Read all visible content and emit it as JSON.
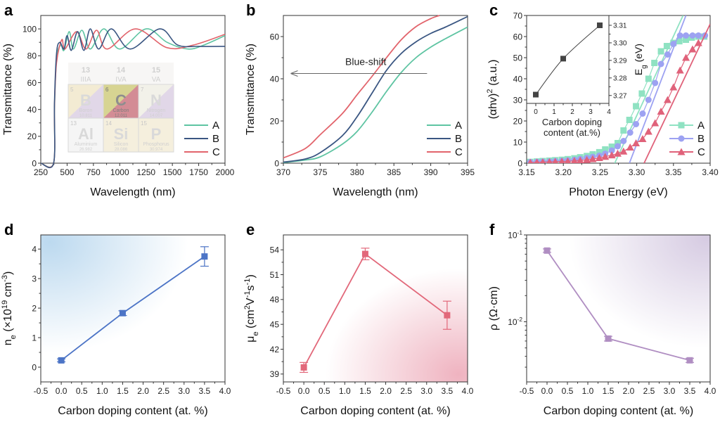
{
  "panel_labels": [
    "a",
    "b",
    "c",
    "d",
    "e",
    "f"
  ],
  "colors": {
    "A": "#5ec4a2",
    "B": "#3a5682",
    "C": "#e2646c",
    "c_A": "#8fe2c2",
    "c_B": "#9da2f2",
    "c_C": "#e0627a",
    "d": "#4c74c6",
    "e": "#e2687a",
    "f": "#b08ec2",
    "arrow": "#666666"
  },
  "periodic_table_inset": {
    "headers": [
      {
        "num": "13",
        "group": "IIIA"
      },
      {
        "num": "14",
        "group": "IVA"
      },
      {
        "num": "15",
        "group": "VA"
      }
    ],
    "cells": [
      {
        "z": "5",
        "sym": "B",
        "name": "Boron",
        "mass": "10.811"
      },
      {
        "z": "6",
        "sym": "C",
        "name": "Carbon",
        "mass": "12.011"
      },
      {
        "z": "7",
        "sym": "N",
        "name": "Nitrogen",
        "mass": "14.007"
      },
      {
        "z": "13",
        "sym": "Al",
        "name": "Aluminium",
        "mass": "26.982"
      },
      {
        "z": "14",
        "sym": "Si",
        "name": "Silicon",
        "mass": "28.086"
      },
      {
        "z": "15",
        "sym": "P",
        "name": "Phosphorus",
        "mass": "30.974"
      }
    ]
  },
  "chart_data": [
    {
      "panel": "a",
      "type": "line",
      "xlabel": "Wavelength (nm)",
      "ylabel": "Transmittance (%)",
      "xlim": [
        250,
        2000
      ],
      "ylim": [
        0,
        110
      ],
      "xticks": [
        250,
        500,
        750,
        1000,
        1250,
        1500,
        1750,
        2000
      ],
      "yticks": [
        0,
        20,
        40,
        60,
        80,
        100
      ],
      "legend": "bottom-right",
      "series": [
        {
          "name": "A",
          "points": [
            [
              250,
              0
            ],
            [
              372,
              0
            ],
            [
              380,
              40
            ],
            [
              400,
              78
            ],
            [
              440,
              88
            ],
            [
              470,
              84
            ],
            [
              520,
              98
            ],
            [
              560,
              85
            ],
            [
              640,
              99
            ],
            [
              720,
              85
            ],
            [
              850,
              100
            ],
            [
              1000,
              85
            ],
            [
              1250,
              100
            ],
            [
              1450,
              90
            ],
            [
              1650,
              85
            ],
            [
              1800,
              88
            ],
            [
              2000,
              95
            ]
          ]
        },
        {
          "name": "B",
          "points": [
            [
              250,
              0
            ],
            [
              372,
              0
            ],
            [
              380,
              45
            ],
            [
              400,
              82
            ],
            [
              430,
              90
            ],
            [
              470,
              85
            ],
            [
              500,
              95
            ],
            [
              540,
              84
            ],
            [
              600,
              98
            ],
            [
              660,
              84
            ],
            [
              720,
              100
            ],
            [
              800,
              85
            ],
            [
              920,
              100
            ],
            [
              1100,
              85
            ],
            [
              1380,
              100
            ],
            [
              1550,
              88
            ],
            [
              1750,
              87
            ],
            [
              2000,
              87
            ]
          ]
        },
        {
          "name": "C",
          "points": [
            [
              250,
              0
            ],
            [
              372,
              0
            ],
            [
              380,
              42
            ],
            [
              400,
              75
            ],
            [
              450,
              92
            ],
            [
              480,
              85
            ],
            [
              590,
              98
            ],
            [
              680,
              85
            ],
            [
              780,
              99
            ],
            [
              880,
              85
            ],
            [
              1150,
              100
            ],
            [
              1450,
              86
            ],
            [
              1700,
              88
            ],
            [
              2000,
              96
            ]
          ]
        }
      ]
    },
    {
      "panel": "b",
      "type": "line",
      "xlabel": "Wavelength (nm)",
      "ylabel": "Transmittance (%)",
      "xlim": [
        370,
        395
      ],
      "ylim": [
        0,
        70
      ],
      "xticks": [
        370,
        375,
        380,
        385,
        390,
        395
      ],
      "yticks": [
        0,
        20,
        40,
        60
      ],
      "legend": "bottom-right",
      "annotation": {
        "text": "Blue-shift",
        "from": [
          389.5,
          42.5
        ],
        "to": [
          371,
          42.5
        ]
      },
      "series": [
        {
          "name": "A",
          "points": [
            [
              370,
              0.3
            ],
            [
              373,
              1.5
            ],
            [
              375,
              3
            ],
            [
              378,
              9
            ],
            [
              380,
              15
            ],
            [
              382,
              24
            ],
            [
              384,
              34
            ],
            [
              386,
              43
            ],
            [
              388,
              50
            ],
            [
              390,
              55
            ],
            [
              392,
              59
            ],
            [
              395,
              64.5
            ]
          ]
        },
        {
          "name": "B",
          "points": [
            [
              370,
              0.5
            ],
            [
              373,
              2
            ],
            [
              375,
              5
            ],
            [
              378,
              13
            ],
            [
              380,
              22
            ],
            [
              382,
              33
            ],
            [
              384,
              44
            ],
            [
              386,
              52
            ],
            [
              388,
              57.5
            ],
            [
              390,
              61.5
            ],
            [
              392,
              64.5
            ],
            [
              395,
              69.5
            ]
          ]
        },
        {
          "name": "C",
          "points": [
            [
              370,
              2.5
            ],
            [
              373,
              7
            ],
            [
              375,
              13.5
            ],
            [
              378,
              23.5
            ],
            [
              380,
              32.4
            ],
            [
              382,
              41
            ],
            [
              384,
              50
            ],
            [
              386,
              58.5
            ],
            [
              388,
              64.7
            ],
            [
              390,
              68.5
            ],
            [
              391.2,
              70
            ]
          ]
        }
      ]
    },
    {
      "panel": "c",
      "type": "scatter",
      "xlabel": "Photon Energy (eV)",
      "ylabel": "(αhv){^2} (a.u.)",
      "xlim": [
        3.15,
        3.4
      ],
      "ylim": [
        0,
        70
      ],
      "xticks": [
        3.15,
        3.2,
        3.25,
        3.3,
        3.35,
        3.4
      ],
      "yticks": [
        0,
        10,
        20,
        30,
        40,
        50,
        60,
        70
      ],
      "legend": "bottom-right",
      "series": [
        {
          "name": "A",
          "marker": "square",
          "fit_intercept_eV": 3.27,
          "fit_slope": 752,
          "points": [
            [
              3.155,
              0.6
            ],
            [
              3.164,
              0.8
            ],
            [
              3.172,
              1
            ],
            [
              3.181,
              1.2
            ],
            [
              3.189,
              1.4
            ],
            [
              3.198,
              1.6
            ],
            [
              3.206,
              1.9
            ],
            [
              3.215,
              2.3
            ],
            [
              3.223,
              2.8
            ],
            [
              3.232,
              3.4
            ],
            [
              3.24,
              4.2
            ],
            [
              3.249,
              5.2
            ],
            [
              3.257,
              6.5
            ],
            [
              3.266,
              7.8
            ],
            [
              3.274,
              9.5
            ],
            [
              3.282,
              15.5
            ],
            [
              3.29,
              20.5
            ],
            [
              3.299,
              27
            ],
            [
              3.307,
              33
            ],
            [
              3.316,
              40
            ],
            [
              3.324,
              47.5
            ],
            [
              3.333,
              53
            ],
            [
              3.341,
              55.5
            ],
            [
              3.35,
              57
            ],
            [
              3.358,
              57.8
            ],
            [
              3.367,
              58.5
            ],
            [
              3.375,
              59.5
            ],
            [
              3.384,
              60
            ],
            [
              3.392,
              60
            ]
          ]
        },
        {
          "name": "B",
          "marker": "circle",
          "fit_intercept_eV": 3.29,
          "fit_slope": 909,
          "points": [
            [
              3.155,
              0.5
            ],
            [
              3.164,
              0.6
            ],
            [
              3.172,
              0.7
            ],
            [
              3.181,
              0.8
            ],
            [
              3.189,
              1
            ],
            [
              3.198,
              1.1
            ],
            [
              3.206,
              1.3
            ],
            [
              3.215,
              1.6
            ],
            [
              3.223,
              2
            ],
            [
              3.232,
              2.5
            ],
            [
              3.24,
              3
            ],
            [
              3.249,
              3.6
            ],
            [
              3.257,
              4.5
            ],
            [
              3.266,
              6
            ],
            [
              3.274,
              8
            ],
            [
              3.282,
              10.5
            ],
            [
              3.291,
              14.5
            ],
            [
              3.299,
              18.5
            ],
            [
              3.308,
              23.5
            ],
            [
              3.316,
              30
            ],
            [
              3.325,
              38
            ],
            [
              3.333,
              47
            ],
            [
              3.342,
              51.5
            ],
            [
              3.35,
              56.5
            ],
            [
              3.359,
              60.5
            ],
            [
              3.367,
              60.5
            ],
            [
              3.376,
              60.5
            ],
            [
              3.384,
              60.5
            ],
            [
              3.393,
              60.5
            ]
          ]
        },
        {
          "name": "C",
          "marker": "triangle",
          "fit_intercept_eV": 3.31,
          "fit_slope": 733,
          "points": [
            [
              3.155,
              0.3
            ],
            [
              3.164,
              0.4
            ],
            [
              3.172,
              0.5
            ],
            [
              3.181,
              0.6
            ],
            [
              3.189,
              0.7
            ],
            [
              3.198,
              0.8
            ],
            [
              3.206,
              0.9
            ],
            [
              3.215,
              1.1
            ],
            [
              3.223,
              1.3
            ],
            [
              3.232,
              1.6
            ],
            [
              3.24,
              2
            ],
            [
              3.249,
              2.5
            ],
            [
              3.257,
              3.1
            ],
            [
              3.266,
              3.8
            ],
            [
              3.274,
              4.6
            ],
            [
              3.282,
              5.6
            ],
            [
              3.291,
              7.5
            ],
            [
              3.299,
              9.5
            ],
            [
              3.308,
              11.5
            ],
            [
              3.316,
              15
            ],
            [
              3.325,
              19
            ],
            [
              3.333,
              24.5
            ],
            [
              3.342,
              30
            ],
            [
              3.35,
              36
            ],
            [
              3.359,
              44
            ],
            [
              3.367,
              50
            ],
            [
              3.376,
              54
            ],
            [
              3.384,
              57
            ]
          ]
        }
      ]
    },
    {
      "panel": "c-inset",
      "type": "line",
      "xlabel": "Carbon doping content (at.%)",
      "xlabel_lines": [
        "Carbon doping",
        "content (at.%)"
      ],
      "ylabel": "E{_g} (eV)",
      "xlim": [
        -0.5,
        4
      ],
      "ylim": [
        3.2655,
        3.3156
      ],
      "xticks": [
        0,
        1,
        2,
        3,
        4
      ],
      "yticks": [
        3.27,
        3.28,
        3.29,
        3.3,
        3.31
      ],
      "x": [
        0,
        1.5,
        3.5
      ],
      "y": [
        3.2705,
        3.291,
        3.31
      ]
    },
    {
      "panel": "d",
      "type": "line",
      "xlabel": "Carbon doping content (at. %)",
      "ylabel": "n{_e} (×10{^19} cm{^-3})",
      "xlim": [
        -0.5,
        4.0
      ],
      "ylim": [
        -0.5,
        4.48
      ],
      "xticks": [
        -0.5,
        0.0,
        0.5,
        1.0,
        1.5,
        2.0,
        2.5,
        3.0,
        3.5,
        4.0
      ],
      "yticks": [
        0,
        1,
        2,
        3,
        4
      ],
      "x": [
        0,
        1.5,
        3.5
      ],
      "y": [
        0.23,
        1.83,
        3.75
      ],
      "error": [
        0.05,
        0.08,
        0.33
      ]
    },
    {
      "panel": "e",
      "type": "line",
      "xlabel": "Carbon doping content (at. %)",
      "ylabel": "μ{_e} (cm{^2}V{^-1}s{^-1})",
      "xlim": [
        -0.5,
        4.0
      ],
      "ylim": [
        38.05,
        55.8
      ],
      "xticks": [
        -0.5,
        0.0,
        0.5,
        1.0,
        1.5,
        2.0,
        2.5,
        3.0,
        3.5,
        4.0
      ],
      "yticks": [
        39,
        42,
        45,
        48,
        51,
        54
      ],
      "x": [
        0,
        1.5,
        3.5
      ],
      "y": [
        39.8,
        53.5,
        46.1
      ],
      "error": [
        0.6,
        0.7,
        1.7
      ]
    },
    {
      "panel": "f",
      "type": "line",
      "yscale": "log",
      "xlabel": "Carbon doping content (at. %)",
      "ylabel": "ρ (Ω·cm)",
      "xlim": [
        -0.5,
        4.0
      ],
      "ylim": [
        0.00203,
        0.1
      ],
      "xticks": [
        -0.5,
        0.0,
        0.5,
        1.0,
        1.5,
        2.0,
        2.5,
        3.0,
        3.5,
        4.0
      ],
      "yticks": [
        0.01,
        0.1
      ],
      "ytick_labels": [
        "10{^-2}",
        "10{^-1}"
      ],
      "x": [
        0,
        1.5,
        3.5
      ],
      "y": [
        0.066,
        0.0064,
        0.0036
      ],
      "error": [
        0.003,
        0.0004,
        0.0002
      ]
    }
  ]
}
